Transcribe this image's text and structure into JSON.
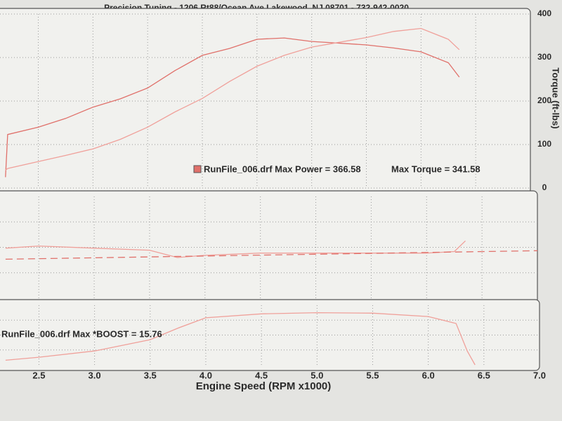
{
  "chart_data": [
    {
      "type": "line",
      "title": "Precision Tuning - 1206 Rt88/Ocean Ave Lakewood, NJ 08701 - 732-942-0020",
      "ylabel": "Torque (ft-lbs)",
      "legend_text": "RunFile_006.drf Max Power = 366.58",
      "annotation": "Max Torque = 341.58",
      "x": [
        2.2,
        2.22,
        2.5,
        2.75,
        3.0,
        3.25,
        3.5,
        3.75,
        4.0,
        4.25,
        4.5,
        4.75,
        5.0,
        5.25,
        5.5,
        5.75,
        6.0,
        6.25,
        6.35
      ],
      "series": [
        {
          "color": "#e0706a",
          "values": [
            25,
            123,
            140,
            160,
            186,
            205,
            230,
            270,
            305,
            321,
            342,
            345,
            337,
            333,
            329,
            322,
            313,
            288,
            255
          ]
        },
        {
          "color": "#f0a09a",
          "values": [
            41,
            45,
            61,
            75,
            90,
            112,
            140,
            175,
            206,
            245,
            280,
            305,
            324,
            335,
            346,
            360,
            367,
            342,
            318
          ]
        }
      ],
      "xlim": [
        2.15,
        7.0
      ],
      "ylim": [
        0,
        400
      ],
      "yticks": [
        0,
        100,
        200,
        300,
        400
      ],
      "grid": true
    },
    {
      "type": "line",
      "x": [
        2.2,
        2.5,
        3.0,
        3.5,
        3.75,
        4.0,
        4.5,
        5.0,
        5.5,
        6.0,
        6.25,
        6.35
      ],
      "series": [
        {
          "color": "#f0a09a",
          "values": [
            12.95,
            13.08,
            12.95,
            12.83,
            12.4,
            12.53,
            12.66,
            12.66,
            12.66,
            12.66,
            12.75,
            13.38
          ]
        },
        {
          "color": "#e0706a",
          "dashed": true,
          "x": [
            2.2,
            7.0
          ],
          "values": [
            12.3,
            12.8
          ]
        }
      ],
      "xlim": [
        2.15,
        7.0
      ],
      "ylim": [
        10,
        16
      ],
      "grid": true
    },
    {
      "type": "line",
      "legend_text": "RunFile_006.drf Max *BOOST = 15.76",
      "xlabel": "Engine Speed (RPM x1000)",
      "x": [
        2.2,
        2.5,
        3.0,
        3.5,
        3.75,
        4.0,
        4.5,
        5.0,
        5.5,
        6.0,
        6.25,
        6.35,
        6.42
      ],
      "series": [
        {
          "color": "#f0a09a",
          "values": [
            1.4,
            2.3,
            4.2,
            7.6,
            11.1,
            14.2,
            15.4,
            15.76,
            15.6,
            14.6,
            12.5,
            4.2,
            0
          ]
        }
      ],
      "xlim": [
        2.15,
        7.0
      ],
      "ylim": [
        0,
        18
      ],
      "xticks": [
        2.5,
        {
          "value": 3,
          "label": "3.0"
        },
        3.5,
        {
          "value": 4,
          "label": "4.0"
        },
        4.5,
        {
          "value": 5,
          "label": "5.0"
        },
        5.5,
        {
          "value": 6,
          "label": "6.0"
        },
        6.5,
        {
          "value": 7,
          "label": "7.0"
        }
      ],
      "grid": true
    }
  ]
}
